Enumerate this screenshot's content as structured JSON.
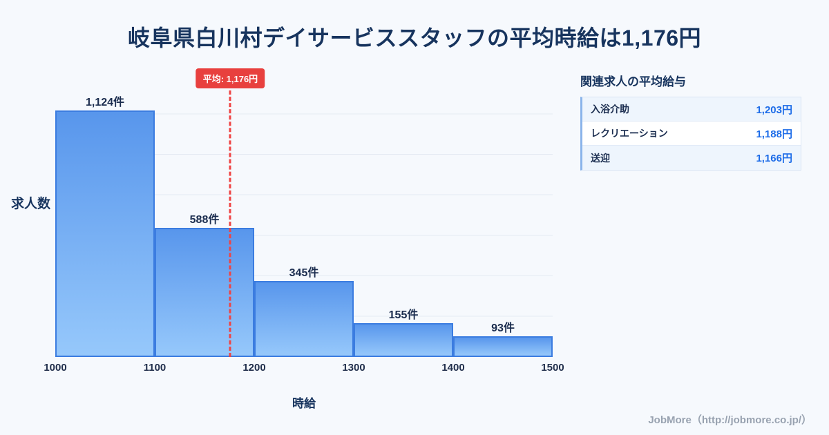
{
  "page": {
    "title": "岐阜県白川村デイサービススタッフの平均時給は1,176円",
    "footer": "JobMore（http://jobmore.co.jp/）"
  },
  "chart_data": {
    "type": "bar",
    "title": "岐阜県白川村デイサービススタッフの平均時給は1,176円",
    "xlabel": "時給",
    "ylabel": "求人数",
    "x_ticks": [
      "1000",
      "1100",
      "1200",
      "1300",
      "1400",
      "1500"
    ],
    "bins": [
      [
        1000,
        1100
      ],
      [
        1100,
        1200
      ],
      [
        1200,
        1300
      ],
      [
        1300,
        1400
      ],
      [
        1400,
        1500
      ]
    ],
    "values": [
      1124,
      588,
      345,
      155,
      93
    ],
    "bar_labels": [
      "1,124件",
      "588件",
      "345件",
      "155件",
      "93件"
    ],
    "average": {
      "value": 1176,
      "label": "平均: 1,176円"
    },
    "x_range": [
      1000,
      1500
    ],
    "ylim": [
      0,
      1290
    ],
    "grid": true,
    "legend": "none",
    "colors": {
      "bar_top": "#5896ec",
      "bar_bottom": "#96c8fb",
      "bar_border": "#3b7ce0",
      "average_line": "#ef4444",
      "average_badge_bg": "#e8403e",
      "title_text": "#17345e",
      "value_text": "#1d6ce8",
      "background": "#f6f9fd"
    }
  },
  "side_panel": {
    "heading": "関連求人の平均給与",
    "rows": [
      {
        "label": "入浴介助",
        "value": "1,203円"
      },
      {
        "label": "レクリエーション",
        "value": "1,188円"
      },
      {
        "label": "送迎",
        "value": "1,166円"
      }
    ]
  }
}
